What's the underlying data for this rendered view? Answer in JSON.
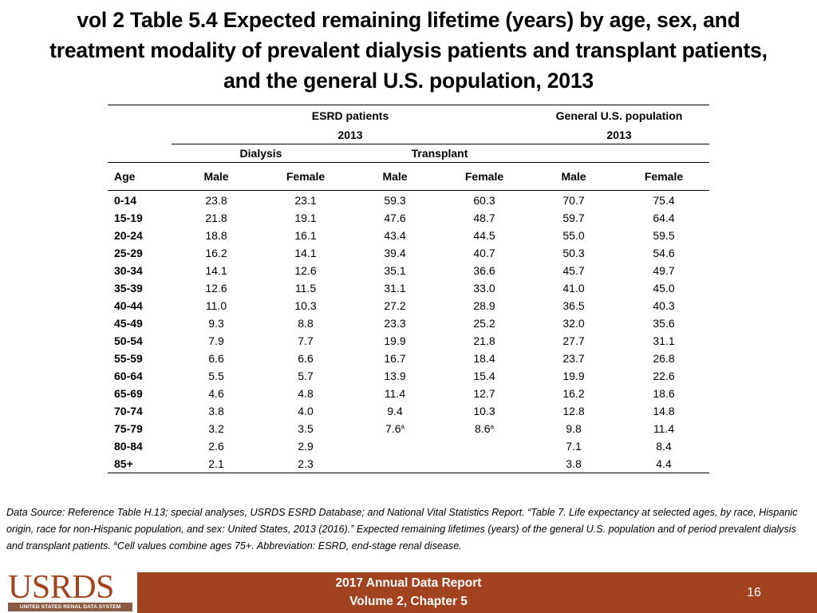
{
  "title": {
    "line1": "vol 2 Table 5.4 Expected remaining lifetime (years) by age, sex, and",
    "line2": "treatment modality of prevalent dialysis patients and transplant patients,",
    "line3": "and the general U.S. population, 2013"
  },
  "table": {
    "group_esrd": "ESRD patients",
    "group_general": "General U.S. population",
    "year_esrd": "2013",
    "year_general": "2013",
    "sub_dialysis": "Dialysis",
    "sub_transplant": "Transplant",
    "columns": [
      "Age",
      "Male",
      "Female",
      "Male",
      "Female",
      "Male",
      "Female"
    ],
    "rows": [
      {
        "age": "0-14",
        "dm": "23.8",
        "df": "23.1",
        "tm": "59.3",
        "tf": "60.3",
        "gm": "70.7",
        "gf": "75.4"
      },
      {
        "age": "15-19",
        "dm": "21.8",
        "df": "19.1",
        "tm": "47.6",
        "tf": "48.7",
        "gm": "59.7",
        "gf": "64.4"
      },
      {
        "age": "20-24",
        "dm": "18.8",
        "df": "16.1",
        "tm": "43.4",
        "tf": "44.5",
        "gm": "55.0",
        "gf": "59.5"
      },
      {
        "age": "25-29",
        "dm": "16.2",
        "df": "14.1",
        "tm": "39.4",
        "tf": "40.7",
        "gm": "50.3",
        "gf": "54.6"
      },
      {
        "age": "30-34",
        "dm": "14.1",
        "df": "12.6",
        "tm": "35.1",
        "tf": "36.6",
        "gm": "45.7",
        "gf": "49.7"
      },
      {
        "age": "35-39",
        "dm": "12.6",
        "df": "11.5",
        "tm": "31.1",
        "tf": "33.0",
        "gm": "41.0",
        "gf": "45.0"
      },
      {
        "age": "40-44",
        "dm": "11.0",
        "df": "10.3",
        "tm": "27.2",
        "tf": "28.9",
        "gm": "36.5",
        "gf": "40.3"
      },
      {
        "age": "45-49",
        "dm": "9.3",
        "df": "8.8",
        "tm": "23.3",
        "tf": "25.2",
        "gm": "32.0",
        "gf": "35.6"
      },
      {
        "age": "50-54",
        "dm": "7.9",
        "df": "7.7",
        "tm": "19.9",
        "tf": "21.8",
        "gm": "27.7",
        "gf": "31.1"
      },
      {
        "age": "55-59",
        "dm": "6.6",
        "df": "6.6",
        "tm": "16.7",
        "tf": "18.4",
        "gm": "23.7",
        "gf": "26.8"
      },
      {
        "age": "60-64",
        "dm": "5.5",
        "df": "5.7",
        "tm": "13.9",
        "tf": "15.4",
        "gm": "19.9",
        "gf": "22.6"
      },
      {
        "age": "65-69",
        "dm": "4.6",
        "df": "4.8",
        "tm": "11.4",
        "tf": "12.7",
        "gm": "16.2",
        "gf": "18.6"
      },
      {
        "age": "70-74",
        "dm": "3.8",
        "df": "4.0",
        "tm": "9.4",
        "tf": "10.3",
        "gm": "12.8",
        "gf": "14.8"
      },
      {
        "age": "75-79",
        "dm": "3.2",
        "df": "3.5",
        "tm": "7.6",
        "tf": "8.6",
        "gm": "9.8",
        "gf": "11.4"
      },
      {
        "age": "80-84",
        "dm": "2.6",
        "df": "2.9",
        "tm": "",
        "tf": "",
        "gm": "7.1",
        "gf": "8.4"
      },
      {
        "age": "85+",
        "dm": "2.1",
        "df": "2.3",
        "tm": "",
        "tf": "",
        "gm": "3.8",
        "gf": "4.4"
      }
    ],
    "footnote_marker": "a"
  },
  "note": {
    "part1": "Data Source: Reference Table H.13; special analyses, USRDS ESRD Database; and National Vital Statistics Report. “Table 7. Life expectancy at selected ages, by race, Hispanic origin, race for non-Hispanic population, and sex: United States, 2013 (2016).” Expected remaining lifetimes (years) of the general U.S. population and of period prevalent dialysis and transplant patients. ",
    "marker": "a",
    "part2": "Cell values combine ages 75+. Abbreviation: ESRD, end-stage renal disease."
  },
  "footer": {
    "logo_text": "USRDS",
    "logo_subtext": "UNITED STATES RENAL DATA SYSTEM",
    "report_line1": "2017 Annual Data Report",
    "report_line2": "Volume 2, Chapter 5",
    "page_number": "16"
  },
  "colors": {
    "footer_bg": "#a24320",
    "logo_red": "#a24320"
  }
}
